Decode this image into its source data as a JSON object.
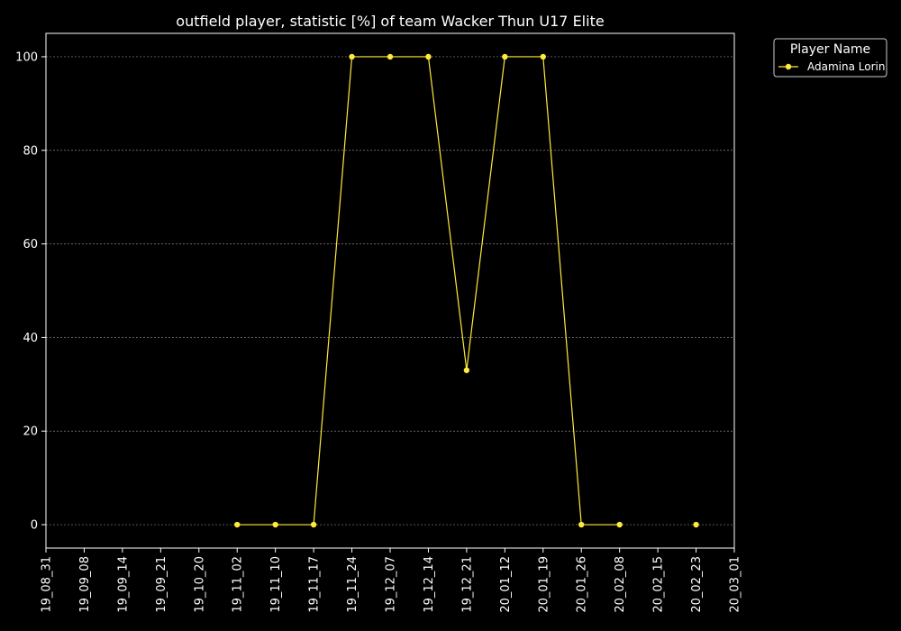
{
  "chart_data": {
    "type": "line",
    "title": "outfield player, statistic [%] of team Wacker Thun U17 Elite",
    "xlabel": "",
    "ylabel": "",
    "x_tick_labels": [
      "19_08_31",
      "19_09_08",
      "19_09_14",
      "19_09_21",
      "19_10_20",
      "19_11_02",
      "19_11_10",
      "19_11_17",
      "19_11_24",
      "19_12_07",
      "19_12_14",
      "19_12_21",
      "20_01_12",
      "20_01_19",
      "20_01_26",
      "20_02_08",
      "20_02_15",
      "20_02_23",
      "20_03_01"
    ],
    "y_ticks": [
      0,
      20,
      40,
      60,
      80,
      100
    ],
    "ylim": [
      -5,
      105
    ],
    "grid": "y-dashed",
    "legend": {
      "title": "Player Name",
      "placement": "outside-top-right"
    },
    "series": [
      {
        "name": "Adamina Lorin",
        "color": "#ffeb3b",
        "points": [
          {
            "x": "19_11_02",
            "y": 0
          },
          {
            "x": "19_11_10",
            "y": 0
          },
          {
            "x": "19_11_17",
            "y": 0
          },
          {
            "x": "19_11_24",
            "y": 100
          },
          {
            "x": "19_12_07",
            "y": 100
          },
          {
            "x": "19_12_14",
            "y": 100
          },
          {
            "x": "19_12_21",
            "y": 33
          },
          {
            "x": "20_01_12",
            "y": 100
          },
          {
            "x": "20_01_19",
            "y": 100
          },
          {
            "x": "20_01_26",
            "y": 0
          },
          {
            "x": "20_02_08",
            "y": 0
          },
          {
            "x": "20_02_23",
            "y": 0,
            "isolated": true
          }
        ]
      }
    ]
  }
}
